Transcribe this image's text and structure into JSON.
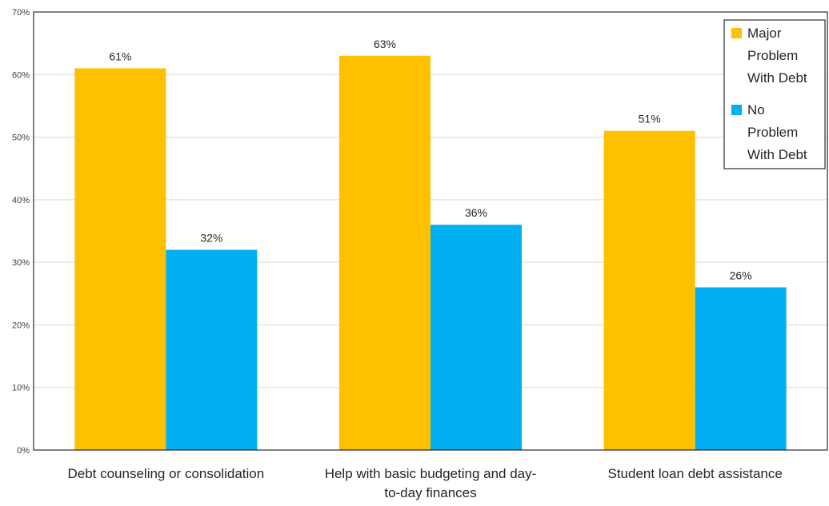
{
  "chart_data": {
    "type": "bar",
    "categories": [
      "Debt counseling or consolidation",
      "Help with basic budgeting and day-to-day finances",
      "Student loan debt assistance"
    ],
    "x_tick_lines": [
      [
        "Debt counseling or consolidation"
      ],
      [
        "Help with basic budgeting and day-",
        "to-day finances"
      ],
      [
        "Student loan debt assistance"
      ]
    ],
    "series": [
      {
        "name": "Major Problem With Debt",
        "values": [
          61,
          63,
          51
        ],
        "labels": [
          "61%",
          "63%",
          "51%"
        ],
        "color": "#FFC000"
      },
      {
        "name": "No Problem With Debt",
        "values": [
          32,
          36,
          26
        ],
        "labels": [
          "32%",
          "36%",
          "26%"
        ],
        "color": "#00B0F0"
      }
    ],
    "legend_lines": [
      [
        "Major",
        "Problem",
        "With Debt"
      ],
      [
        "No",
        "Problem",
        "With Debt"
      ]
    ],
    "y_ticks": [
      "0%",
      "10%",
      "20%",
      "30%",
      "40%",
      "50%",
      "60%",
      "70%"
    ],
    "ylim": [
      0,
      70
    ],
    "grid": true,
    "legend_position": "top-right",
    "title": "",
    "xlabel": "",
    "ylabel": ""
  }
}
